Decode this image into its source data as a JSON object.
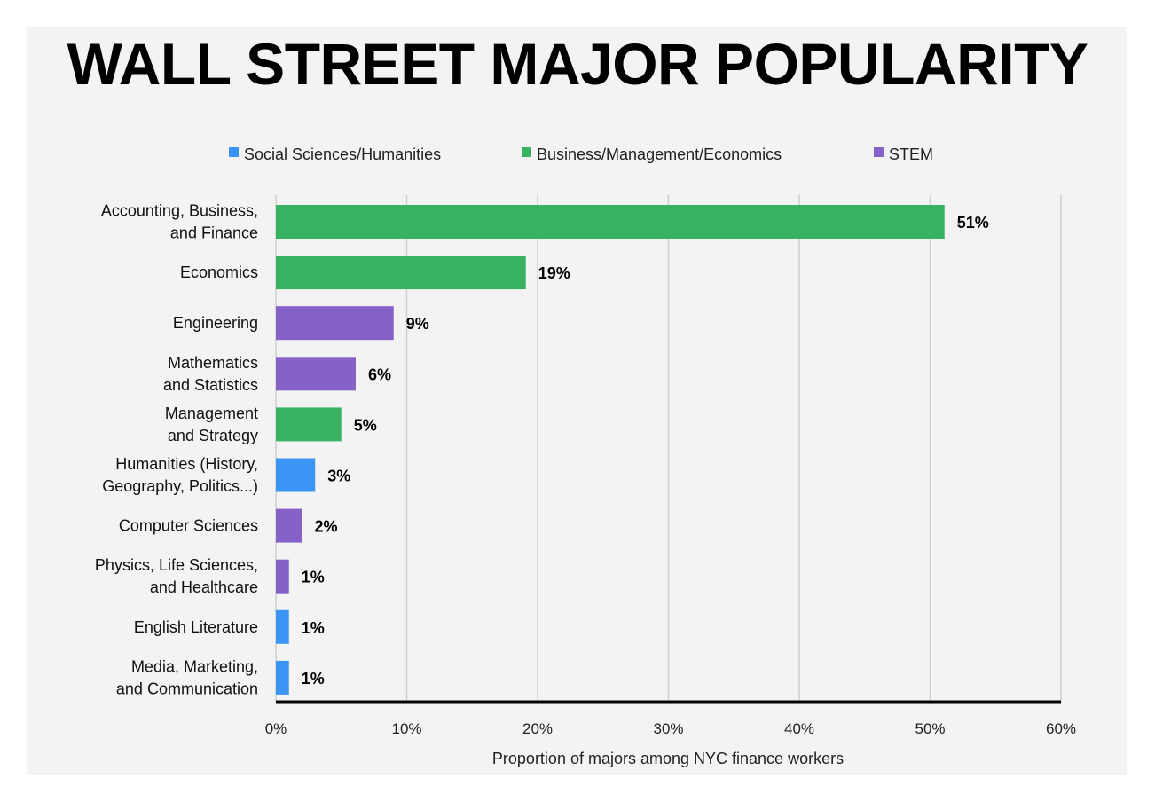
{
  "chart_data": {
    "type": "bar",
    "orientation": "horizontal",
    "title": "WALL STREET MAJOR POPULARITY",
    "xlabel": "Proportion of majors among NYC finance workers",
    "ylabel": "",
    "xlim": [
      0,
      60
    ],
    "x_ticks": [
      "0%",
      "10%",
      "20%",
      "30%",
      "40%",
      "50%",
      "60%"
    ],
    "grid": true,
    "legend_position": "top-center",
    "legend": [
      {
        "name": "Social Sciences/Humanities",
        "color": "#3a95f5"
      },
      {
        "name": "Business/Management/Economics",
        "color": "#38b261"
      },
      {
        "name": "STEM",
        "color": "#8561c8"
      }
    ],
    "categories": [
      [
        "Accounting, Business,",
        "and Finance"
      ],
      [
        "Economics"
      ],
      [
        "Engineering"
      ],
      [
        "Mathematics",
        "and Statistics"
      ],
      [
        "Management",
        "and Strategy"
      ],
      [
        "Humanities (History,",
        "Geography, Politics...)"
      ],
      [
        "Computer Sciences"
      ],
      [
        "Physics, Life Sciences,",
        "and Healthcare"
      ],
      [
        "English Literature"
      ],
      [
        "Media, Marketing,",
        "and Communication"
      ]
    ],
    "values": [
      51.1,
      19.1,
      9.0,
      6.1,
      5.0,
      3.0,
      2.0,
      1.0,
      1.0,
      1.0
    ],
    "value_labels": [
      "51%",
      "19%",
      "9%",
      "6%",
      "5%",
      "3%",
      "2%",
      "1%",
      "1%",
      "1%"
    ],
    "series_index": [
      1,
      1,
      2,
      2,
      1,
      0,
      2,
      2,
      0,
      0
    ]
  }
}
